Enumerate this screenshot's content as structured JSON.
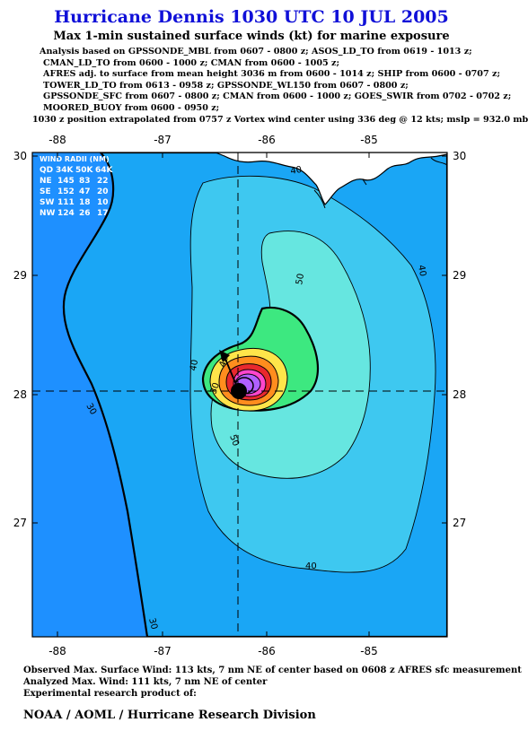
{
  "header": {
    "title": "Hurricane Dennis 1030 UTC 10 JUL 2005",
    "subtitle": "Max 1-min sustained surface winds (kt) for marine exposure",
    "analysis_lines": [
      "Analysis based on  GPSSONDE_MBL from 0607 - 0800 z;  ASOS_LD_TO from 0619 - 1013 z;",
      "CMAN_LD_TO from 0600 - 1000 z;  CMAN from 0600 - 1005 z;",
      "AFRES adj. to surface from mean height 3036 m from 0600 - 1014 z;  SHIP from 0600 - 0707 z;",
      "TOWER_LD_TO from 0613 - 0958 z;  GPSSONDE_WL150 from 0607 - 0800 z;",
      "GPSSONDE_SFC from 0607 - 0800 z;  CMAN from 0600 - 1000 z;  GOES_SWIR from 0702 - 0702 z;",
      "MOORED_BUOY from 0600 - 0950 z;"
    ],
    "position_line": "1030 z position extrapolated from 0757 z Vortex wind center using 336 deg @ 12 kts; mslp = 932.0 mb"
  },
  "map": {
    "lon_ticks": [
      "-88",
      "-87",
      "-86",
      "-85"
    ],
    "lat_ticks": [
      "30",
      "29",
      "28",
      "27"
    ],
    "storm_center": {
      "lon": -86.2,
      "lat": 28.07
    },
    "contour_labels": [
      "40",
      "40",
      "50",
      "30",
      "40",
      "50",
      "40",
      "30",
      "40",
      "30"
    ],
    "colors": {
      "ocean_30kt": "#1e90ff",
      "wind_40kt": "#3ec8f0",
      "wind_50kt": "#66e6e0",
      "wind_60kt": "#3de880",
      "wind_70kt": "#ffe54a",
      "wind_80kt": "#ff8d1e",
      "wind_90kt": "#e8282e",
      "wind_100kt": "#ff46cc",
      "land": "#ffffff"
    }
  },
  "wind_radii": {
    "title": "WIND RADII (NM)",
    "header": [
      "QD",
      "34K",
      "50K",
      "64K"
    ],
    "rows": [
      {
        "qd": "NE",
        "k34": "145",
        "k50": "83",
        "k64": "22"
      },
      {
        "qd": "SE",
        "k34": "152",
        "k50": "47",
        "k64": "20"
      },
      {
        "qd": "SW",
        "k34": "111",
        "k50": "18",
        "k64": "10"
      },
      {
        "qd": "NW",
        "k34": "124",
        "k50": "26",
        "k64": "17"
      }
    ]
  },
  "footer": {
    "observed": "Observed Max. Surface Wind: 113 kts, 7 nm NE of center based on 0608 z AFRES sfc measurement",
    "analyzed": "Analyzed Max. Wind: 111 kts, 7 nm NE of center",
    "experimental": "Experimental research product of:",
    "org": "NOAA / AOML / Hurricane Research Division"
  }
}
